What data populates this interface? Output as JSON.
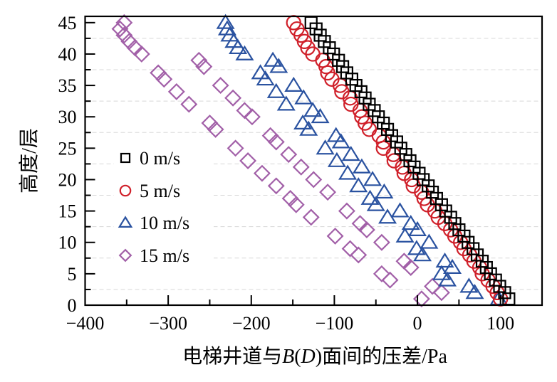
{
  "chart_data": {
    "type": "scatter",
    "title": "",
    "xlabel_parts": [
      "电梯井道与",
      "B",
      "(",
      "D",
      ")面间的压差/Pa"
    ],
    "xlabel": "电梯井道与B(D)面间的压差/Pa",
    "ylabel": "高度/层",
    "xlim": [
      -400,
      150
    ],
    "ylim": [
      0,
      46
    ],
    "xticks": [
      -400,
      -300,
      -200,
      -100,
      0,
      100
    ],
    "xtick_labels": [
      "−400",
      "−300",
      "−200",
      "−100",
      "0",
      "100"
    ],
    "yticks": [
      0,
      5,
      10,
      15,
      20,
      25,
      30,
      35,
      40,
      45
    ],
    "ytick_labels": [
      "0",
      "5",
      "10",
      "15",
      "20",
      "25",
      "30",
      "35",
      "40",
      "45"
    ],
    "grid": "horizontal dashed at minor ticks",
    "legend_position": "left-middle",
    "series": [
      {
        "name": "0 m/s",
        "marker": "square",
        "color": "#000000",
        "y": [
          1,
          2,
          3,
          4,
          5,
          6,
          7,
          8,
          9,
          10,
          11,
          12,
          13,
          14,
          15,
          16,
          17,
          18,
          19,
          20,
          21,
          22,
          23,
          24,
          25,
          26,
          27,
          28,
          29,
          30,
          31,
          32,
          33,
          34,
          35,
          36,
          37,
          38,
          39,
          40,
          41,
          42,
          43,
          44,
          45
        ],
        "x": [
          110,
          105,
          99,
          94,
          88,
          83,
          78,
          72,
          67,
          61,
          56,
          50,
          45,
          40,
          34,
          29,
          23,
          18,
          13,
          7,
          2,
          -4,
          -9,
          -14,
          -20,
          -25,
          -31,
          -36,
          -41,
          -47,
          -52,
          -58,
          -63,
          -68,
          -74,
          -79,
          -85,
          -90,
          -95,
          -101,
          -106,
          -112,
          -117,
          -122,
          -128
        ]
      },
      {
        "name": "5 m/s",
        "marker": "circle",
        "color": "#d0202a",
        "y": [
          1,
          2,
          3,
          4,
          5,
          6,
          7,
          8,
          9,
          10,
          11,
          12,
          13,
          14,
          15,
          16,
          17,
          18,
          19,
          20,
          21,
          22,
          23,
          24,
          25,
          26,
          27,
          28,
          29,
          30,
          31,
          32,
          33,
          34,
          35,
          36,
          37,
          38,
          39,
          40,
          41,
          42,
          43,
          44,
          45
        ],
        "x": [
          100,
          96,
          91,
          85,
          78,
          75,
          68,
          63,
          56,
          52,
          45,
          40,
          33,
          25,
          21,
          12,
          8,
          5,
          -5,
          -7,
          -16,
          -18,
          -28,
          -29,
          -41,
          -41,
          -46,
          -58,
          -63,
          -67,
          -69,
          -80,
          -81,
          -91,
          -93,
          -103,
          -108,
          -110,
          -114,
          -126,
          -132,
          -136,
          -140,
          -145,
          -149
        ]
      },
      {
        "name": "10 m/s",
        "marker": "triangle",
        "color": "#2a52a0",
        "y": [
          1,
          2,
          3,
          4,
          5,
          6,
          7,
          8,
          9,
          10,
          11,
          12,
          13,
          14,
          15,
          16,
          17,
          18,
          19,
          20,
          21,
          22,
          23,
          24,
          25,
          26,
          27,
          28,
          29,
          30,
          31,
          32,
          33,
          34,
          35,
          36,
          37,
          38,
          39,
          40,
          41,
          42,
          43,
          44,
          45
        ],
        "x": [
          98,
          69,
          62,
          36,
          29,
          42,
          33,
          6,
          -1,
          14,
          -15,
          0,
          -8,
          -36,
          -21,
          -50,
          -57,
          -40,
          -71,
          -54,
          -84,
          -67,
          -97,
          -80,
          -111,
          -92,
          -98,
          -131,
          -138,
          -117,
          -126,
          -158,
          -137,
          -170,
          -149,
          -183,
          -189,
          -167,
          -174,
          -208,
          -216,
          -221,
          -226,
          -229,
          -231
        ]
      },
      {
        "name": "15 m/s",
        "marker": "diamond",
        "color": "#a260a8",
        "y": [
          1,
          2,
          3,
          4,
          5,
          6,
          7,
          8,
          9,
          10,
          11,
          12,
          13,
          14,
          15,
          16,
          17,
          18,
          19,
          20,
          21,
          22,
          23,
          24,
          25,
          26,
          27,
          28,
          29,
          30,
          31,
          32,
          33,
          34,
          35,
          36,
          37,
          38,
          39,
          40,
          41,
          42,
          43,
          44,
          45
        ],
        "x": [
          5,
          29,
          18,
          -33,
          -43,
          -8,
          -16,
          -71,
          -81,
          -43,
          -99,
          -61,
          -69,
          -128,
          -85,
          -146,
          -153,
          -108,
          -170,
          -125,
          -187,
          -140,
          -204,
          -155,
          -219,
          -170,
          -177,
          -243,
          -250,
          -199,
          -208,
          -275,
          -222,
          -290,
          -237,
          -305,
          -312,
          -257,
          -263,
          -332,
          -340,
          -347,
          -353,
          -358,
          -353
        ]
      }
    ]
  }
}
